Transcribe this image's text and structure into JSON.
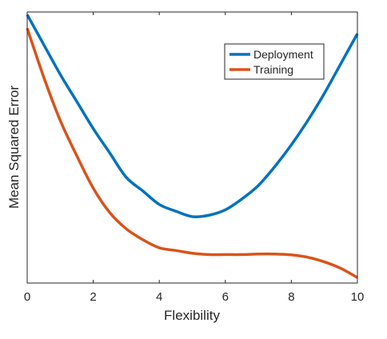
{
  "chart_data": {
    "type": "line",
    "title": "",
    "xlabel": "Flexibility",
    "ylabel": "Mean Squared Error",
    "xlim": [
      0,
      10
    ],
    "ylim": [
      0,
      1
    ],
    "y_ticks_shown": false,
    "xticks": [
      0,
      2,
      4,
      6,
      8,
      10
    ],
    "xtick_labels": [
      "0",
      "2",
      "4",
      "6",
      "8",
      "10"
    ],
    "grid": false,
    "legend_position": "top-right",
    "series": [
      {
        "name": "Deployment",
        "color": "#0072BD",
        "x": [
          0,
          0.5,
          1,
          1.5,
          2,
          2.5,
          3,
          3.5,
          4,
          4.5,
          5,
          5.5,
          6,
          6.5,
          7,
          7.5,
          8,
          8.5,
          9,
          9.5,
          10
        ],
        "y": [
          0.99,
          0.88,
          0.77,
          0.67,
          0.57,
          0.48,
          0.39,
          0.34,
          0.29,
          0.265,
          0.245,
          0.25,
          0.27,
          0.31,
          0.36,
          0.43,
          0.51,
          0.6,
          0.7,
          0.81,
          0.92
        ]
      },
      {
        "name": "Training",
        "color": "#D95319",
        "x": [
          0,
          0.5,
          1,
          1.5,
          2,
          2.5,
          3,
          3.5,
          4,
          4.5,
          5,
          5.5,
          6,
          6.5,
          7,
          7.5,
          8,
          8.5,
          9,
          9.5,
          10
        ],
        "y": [
          0.94,
          0.76,
          0.6,
          0.47,
          0.35,
          0.26,
          0.2,
          0.16,
          0.13,
          0.12,
          0.11,
          0.105,
          0.105,
          0.105,
          0.107,
          0.107,
          0.104,
          0.095,
          0.078,
          0.054,
          0.02
        ]
      }
    ]
  }
}
